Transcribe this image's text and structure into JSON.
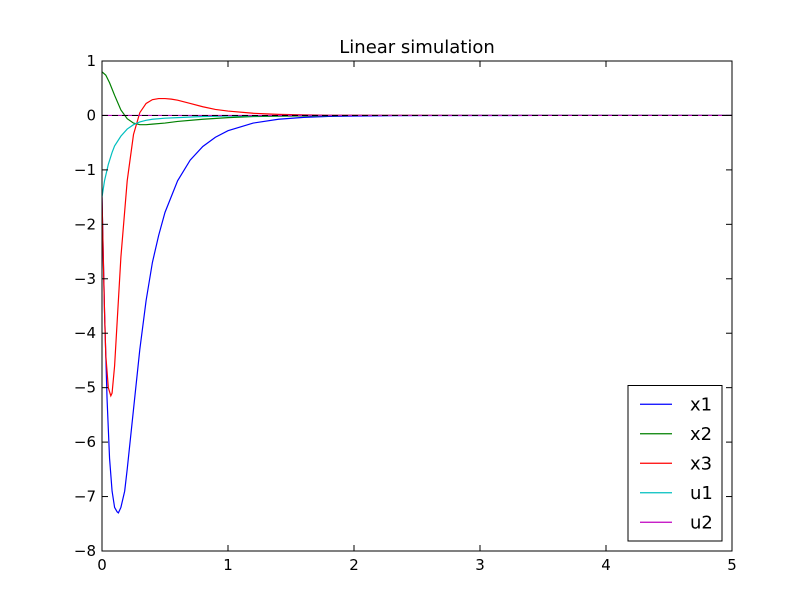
{
  "chart_data": {
    "type": "line",
    "title": "Linear simulation",
    "xlabel": "",
    "ylabel": "",
    "xlim": [
      0,
      5
    ],
    "ylim": [
      -8,
      1
    ],
    "x_ticks": [
      0,
      1,
      2,
      3,
      4,
      5
    ],
    "y_ticks": [
      -8,
      -7,
      -6,
      -5,
      -4,
      -3,
      -2,
      -1,
      0,
      1
    ],
    "x_tick_labels": [
      "0",
      "1",
      "2",
      "3",
      "4",
      "5"
    ],
    "y_tick_labels": [
      "−8",
      "−7",
      "−6",
      "−5",
      "−4",
      "−3",
      "−2",
      "−1",
      "0",
      "1"
    ],
    "grid": false,
    "legend_position": "lower-right",
    "series": [
      {
        "name": "x1",
        "color": "#0000ff",
        "x": [
          0,
          0.02,
          0.04,
          0.06,
          0.08,
          0.1,
          0.12,
          0.13,
          0.15,
          0.18,
          0.2,
          0.25,
          0.3,
          0.35,
          0.4,
          0.45,
          0.5,
          0.6,
          0.7,
          0.8,
          0.9,
          1.0,
          1.2,
          1.4,
          1.6,
          1.8,
          2.0,
          2.3,
          2.6,
          3.0,
          3.5,
          4.0,
          5.0
        ],
        "y": [
          -1.5,
          -3.6,
          -5.2,
          -6.3,
          -6.9,
          -7.2,
          -7.28,
          -7.3,
          -7.2,
          -6.9,
          -6.5,
          -5.4,
          -4.3,
          -3.4,
          -2.7,
          -2.2,
          -1.78,
          -1.2,
          -0.82,
          -0.57,
          -0.4,
          -0.28,
          -0.14,
          -0.07,
          -0.035,
          -0.018,
          -0.01,
          -0.004,
          -0.002,
          -0.001,
          0,
          0,
          0
        ]
      },
      {
        "name": "x2",
        "color": "#008000",
        "x": [
          0,
          0.03,
          0.06,
          0.1,
          0.15,
          0.2,
          0.25,
          0.3,
          0.35,
          0.4,
          0.5,
          0.6,
          0.8,
          1.0,
          1.2,
          1.5,
          2.0,
          3.0,
          5.0
        ],
        "y": [
          0.8,
          0.74,
          0.6,
          0.37,
          0.1,
          -0.06,
          -0.14,
          -0.17,
          -0.17,
          -0.16,
          -0.14,
          -0.11,
          -0.07,
          -0.04,
          -0.02,
          -0.01,
          0,
          0,
          0
        ]
      },
      {
        "name": "x3",
        "color": "#ff0000",
        "x": [
          0,
          0.01,
          0.02,
          0.03,
          0.05,
          0.07,
          0.08,
          0.1,
          0.12,
          0.15,
          0.2,
          0.25,
          0.3,
          0.35,
          0.4,
          0.45,
          0.5,
          0.55,
          0.6,
          0.7,
          0.8,
          0.9,
          1.0,
          1.2,
          1.4,
          1.6,
          1.8,
          2.0,
          2.5,
          3.0,
          5.0
        ],
        "y": [
          -1.5,
          -2.6,
          -3.6,
          -4.4,
          -5.0,
          -5.15,
          -5.1,
          -4.6,
          -3.8,
          -2.6,
          -1.2,
          -0.35,
          0.05,
          0.22,
          0.29,
          0.31,
          0.31,
          0.3,
          0.28,
          0.22,
          0.16,
          0.11,
          0.08,
          0.04,
          0.02,
          0.01,
          0.005,
          0.003,
          0.001,
          0,
          0
        ]
      },
      {
        "name": "u1",
        "color": "#00bfbf",
        "x": [
          0,
          0.02,
          0.05,
          0.08,
          0.1,
          0.15,
          0.2,
          0.25,
          0.3,
          0.35,
          0.4,
          0.5,
          0.6,
          0.8,
          1.0,
          1.5,
          2.0,
          5.0
        ],
        "y": [
          -1.5,
          -1.2,
          -0.9,
          -0.68,
          -0.56,
          -0.38,
          -0.25,
          -0.17,
          -0.12,
          -0.09,
          -0.07,
          -0.05,
          -0.04,
          -0.02,
          -0.01,
          0,
          0,
          0
        ]
      },
      {
        "name": "u2",
        "color": "#bf00bf",
        "x": [
          0,
          5
        ],
        "y": [
          0,
          0
        ]
      }
    ],
    "zero_line": {
      "color": "#000000",
      "dash": true
    }
  }
}
